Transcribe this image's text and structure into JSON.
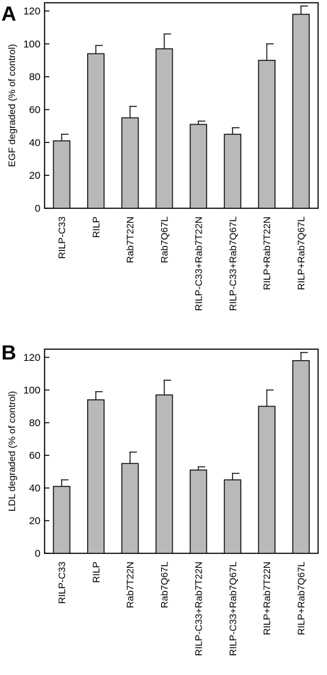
{
  "chart_data": [
    {
      "type": "bar",
      "panel_label": "A",
      "ylabel": "EGF degraded (% of control)",
      "categories": [
        "RILP-C33",
        "RILP",
        "Rab7T22N",
        "Rab7Q67L",
        "RILP-C33+Rab7T22N",
        "RILP-C33+Rab7Q67L",
        "RILP+Rab7T22N",
        "RILP+Rab7Q67L"
      ],
      "values": [
        41,
        94,
        55,
        97,
        51,
        45,
        90,
        118
      ],
      "errors": [
        4,
        5,
        7,
        9,
        2,
        4,
        10,
        5
      ],
      "ylim": [
        0,
        125
      ],
      "yticks": [
        "0",
        "20",
        "40",
        "60",
        "80",
        "100",
        "120"
      ],
      "bar_color": "#b9b9b9",
      "grid": false
    },
    {
      "type": "bar",
      "panel_label": "B",
      "ylabel": "LDL degraded (% of control)",
      "categories": [
        "RILP-C33",
        "RILP",
        "Rab7T22N",
        "Rab7Q67L",
        "RILP-C33+Rab7T22N",
        "RILP-C33+Rab7Q67L",
        "RILP+Rab7T22N",
        "RILP+Rab7Q67L"
      ],
      "values": [
        41,
        94,
        55,
        97,
        51,
        45,
        90,
        118
      ],
      "errors": [
        4,
        5,
        7,
        9,
        2,
        4,
        10,
        5
      ],
      "ylim": [
        0,
        125
      ],
      "yticks": [
        "0",
        "20",
        "40",
        "60",
        "80",
        "100",
        "120"
      ],
      "bar_color": "#b9b9b9",
      "grid": false
    }
  ]
}
